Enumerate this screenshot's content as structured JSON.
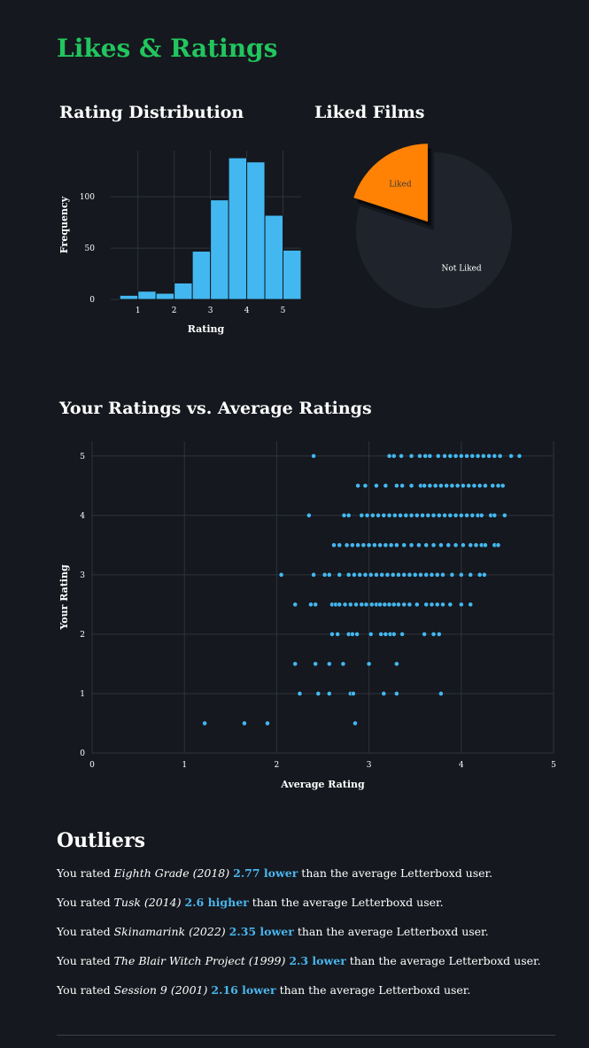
{
  "page": {
    "title": "Likes & Ratings"
  },
  "colors": {
    "accent": "#22c55e",
    "bar": "#43b8f0",
    "point": "#43b8f0",
    "liked": "#ff8205",
    "not_liked": "#1f242c",
    "highlight": "#49b6ee",
    "grid": "#2e333b"
  },
  "chart_data": [
    {
      "type": "bar",
      "title": "Rating Distribution",
      "xlabel": "Rating",
      "ylabel": "Frequency",
      "bin_edges": [
        0.5,
        1,
        1.5,
        2,
        2.5,
        3,
        3.5,
        4,
        4.5,
        5,
        5.5
      ],
      "values": [
        4,
        8,
        6,
        16,
        47,
        97,
        138,
        134,
        82,
        48
      ],
      "xlim": [
        0.25,
        5.5
      ],
      "ylim": [
        0,
        145
      ],
      "xticks": [
        1,
        2,
        3,
        4,
        5
      ],
      "yticks": [
        0,
        50,
        100
      ],
      "grid": true
    },
    {
      "type": "pie",
      "title": "Liked Films",
      "labels": [
        "Liked",
        "Not Liked"
      ],
      "values": [
        20,
        80
      ],
      "exploded": [
        "Liked"
      ]
    },
    {
      "type": "scatter",
      "title": "Your Ratings vs. Average Ratings",
      "xlabel": "Average Rating",
      "ylabel": "Your Rating",
      "xlim": [
        0,
        5
      ],
      "ylim": [
        0,
        5.25
      ],
      "xticks": [
        0,
        1,
        2,
        3,
        4,
        5
      ],
      "yticks": [
        0,
        1,
        2,
        3,
        4,
        5
      ],
      "grid": true,
      "points": [
        [
          1.22,
          0.5
        ],
        [
          1.65,
          0.5
        ],
        [
          1.9,
          0.5
        ],
        [
          2.85,
          0.5
        ],
        [
          2.25,
          1
        ],
        [
          2.45,
          1
        ],
        [
          2.57,
          1
        ],
        [
          2.8,
          1
        ],
        [
          2.83,
          1
        ],
        [
          3.16,
          1
        ],
        [
          3.3,
          1
        ],
        [
          3.78,
          1
        ],
        [
          2.2,
          1.5
        ],
        [
          2.42,
          1.5
        ],
        [
          2.57,
          1.5
        ],
        [
          2.72,
          1.5
        ],
        [
          3.0,
          1.5
        ],
        [
          3.3,
          1.5
        ],
        [
          2.6,
          2
        ],
        [
          2.66,
          2
        ],
        [
          2.78,
          2
        ],
        [
          2.82,
          2
        ],
        [
          2.87,
          2
        ],
        [
          3.02,
          2
        ],
        [
          3.13,
          2
        ],
        [
          3.18,
          2
        ],
        [
          3.23,
          2
        ],
        [
          3.27,
          2
        ],
        [
          3.36,
          2
        ],
        [
          3.6,
          2
        ],
        [
          3.7,
          2
        ],
        [
          3.76,
          2
        ],
        [
          2.2,
          2.5
        ],
        [
          2.37,
          2.5
        ],
        [
          2.42,
          2.5
        ],
        [
          2.6,
          2.5
        ],
        [
          2.64,
          2.5
        ],
        [
          2.68,
          2.5
        ],
        [
          2.74,
          2.5
        ],
        [
          2.8,
          2.5
        ],
        [
          2.86,
          2.5
        ],
        [
          2.92,
          2.5
        ],
        [
          2.97,
          2.5
        ],
        [
          3.03,
          2.5
        ],
        [
          3.08,
          2.5
        ],
        [
          3.12,
          2.5
        ],
        [
          3.17,
          2.5
        ],
        [
          3.22,
          2.5
        ],
        [
          3.27,
          2.5
        ],
        [
          3.32,
          2.5
        ],
        [
          3.38,
          2.5
        ],
        [
          3.44,
          2.5
        ],
        [
          3.52,
          2.5
        ],
        [
          3.62,
          2.5
        ],
        [
          3.68,
          2.5
        ],
        [
          3.74,
          2.5
        ],
        [
          3.8,
          2.5
        ],
        [
          3.88,
          2.5
        ],
        [
          4.0,
          2.5
        ],
        [
          4.1,
          2.5
        ],
        [
          2.05,
          3
        ],
        [
          2.4,
          3
        ],
        [
          2.52,
          3
        ],
        [
          2.57,
          3
        ],
        [
          2.68,
          3
        ],
        [
          2.78,
          3
        ],
        [
          2.84,
          3
        ],
        [
          2.9,
          3
        ],
        [
          2.96,
          3
        ],
        [
          3.02,
          3
        ],
        [
          3.08,
          3
        ],
        [
          3.14,
          3
        ],
        [
          3.2,
          3
        ],
        [
          3.26,
          3
        ],
        [
          3.32,
          3
        ],
        [
          3.38,
          3
        ],
        [
          3.44,
          3
        ],
        [
          3.5,
          3
        ],
        [
          3.56,
          3
        ],
        [
          3.62,
          3
        ],
        [
          3.68,
          3
        ],
        [
          3.74,
          3
        ],
        [
          3.8,
          3
        ],
        [
          3.9,
          3
        ],
        [
          4.0,
          3
        ],
        [
          4.1,
          3
        ],
        [
          4.2,
          3
        ],
        [
          4.25,
          3
        ],
        [
          2.62,
          3.5
        ],
        [
          2.68,
          3.5
        ],
        [
          2.76,
          3.5
        ],
        [
          2.82,
          3.5
        ],
        [
          2.88,
          3.5
        ],
        [
          2.94,
          3.5
        ],
        [
          3.0,
          3.5
        ],
        [
          3.06,
          3.5
        ],
        [
          3.12,
          3.5
        ],
        [
          3.18,
          3.5
        ],
        [
          3.24,
          3.5
        ],
        [
          3.3,
          3.5
        ],
        [
          3.38,
          3.5
        ],
        [
          3.46,
          3.5
        ],
        [
          3.54,
          3.5
        ],
        [
          3.62,
          3.5
        ],
        [
          3.7,
          3.5
        ],
        [
          3.78,
          3.5
        ],
        [
          3.86,
          3.5
        ],
        [
          3.94,
          3.5
        ],
        [
          4.02,
          3.5
        ],
        [
          4.1,
          3.5
        ],
        [
          4.16,
          3.5
        ],
        [
          4.22,
          3.5
        ],
        [
          4.26,
          3.5
        ],
        [
          4.36,
          3.5
        ],
        [
          4.4,
          3.5
        ],
        [
          2.35,
          4
        ],
        [
          2.73,
          4
        ],
        [
          2.78,
          4
        ],
        [
          2.92,
          4
        ],
        [
          2.98,
          4
        ],
        [
          3.04,
          4
        ],
        [
          3.1,
          4
        ],
        [
          3.16,
          4
        ],
        [
          3.22,
          4
        ],
        [
          3.28,
          4
        ],
        [
          3.34,
          4
        ],
        [
          3.4,
          4
        ],
        [
          3.46,
          4
        ],
        [
          3.52,
          4
        ],
        [
          3.58,
          4
        ],
        [
          3.64,
          4
        ],
        [
          3.7,
          4
        ],
        [
          3.76,
          4
        ],
        [
          3.82,
          4
        ],
        [
          3.88,
          4
        ],
        [
          3.94,
          4
        ],
        [
          4.0,
          4
        ],
        [
          4.06,
          4
        ],
        [
          4.12,
          4
        ],
        [
          4.18,
          4
        ],
        [
          4.22,
          4
        ],
        [
          4.32,
          4
        ],
        [
          4.36,
          4
        ],
        [
          4.47,
          4
        ],
        [
          2.88,
          4.5
        ],
        [
          2.96,
          4.5
        ],
        [
          3.08,
          4.5
        ],
        [
          3.18,
          4.5
        ],
        [
          3.3,
          4.5
        ],
        [
          3.36,
          4.5
        ],
        [
          3.46,
          4.5
        ],
        [
          3.56,
          4.5
        ],
        [
          3.6,
          4.5
        ],
        [
          3.66,
          4.5
        ],
        [
          3.72,
          4.5
        ],
        [
          3.78,
          4.5
        ],
        [
          3.84,
          4.5
        ],
        [
          3.9,
          4.5
        ],
        [
          3.96,
          4.5
        ],
        [
          4.02,
          4.5
        ],
        [
          4.08,
          4.5
        ],
        [
          4.14,
          4.5
        ],
        [
          4.2,
          4.5
        ],
        [
          4.26,
          4.5
        ],
        [
          4.34,
          4.5
        ],
        [
          4.4,
          4.5
        ],
        [
          4.45,
          4.5
        ],
        [
          2.4,
          5
        ],
        [
          3.22,
          5
        ],
        [
          3.27,
          5
        ],
        [
          3.35,
          5
        ],
        [
          3.46,
          5
        ],
        [
          3.55,
          5
        ],
        [
          3.61,
          5
        ],
        [
          3.66,
          5
        ],
        [
          3.75,
          5
        ],
        [
          3.82,
          5
        ],
        [
          3.88,
          5
        ],
        [
          3.94,
          5
        ],
        [
          4.0,
          5
        ],
        [
          4.06,
          5
        ],
        [
          4.12,
          5
        ],
        [
          4.18,
          5
        ],
        [
          4.24,
          5
        ],
        [
          4.3,
          5
        ],
        [
          4.36,
          5
        ],
        [
          4.42,
          5
        ],
        [
          4.54,
          5
        ],
        [
          4.63,
          5
        ]
      ]
    }
  ],
  "outliers": {
    "title": "Outliers",
    "items": [
      {
        "prefix": "You rated",
        "film": "Eighth Grade (2018)",
        "diff": "2.77 lower",
        "suffix": "than the average Letterboxd user."
      },
      {
        "prefix": "You rated",
        "film": "Tusk (2014)",
        "diff": "2.6 higher",
        "suffix": "than the average Letterboxd user."
      },
      {
        "prefix": "You rated",
        "film": "Skinamarink (2022)",
        "diff": "2.35 lower",
        "suffix": "than the average Letterboxd user."
      },
      {
        "prefix": "You rated",
        "film": "The Blair Witch Project (1999)",
        "diff": "2.3 lower",
        "suffix": "than the average Letterboxd user."
      },
      {
        "prefix": "You rated",
        "film": "Session 9 (2001)",
        "diff": "2.16 lower",
        "suffix": "than the average Letterboxd user."
      }
    ]
  }
}
